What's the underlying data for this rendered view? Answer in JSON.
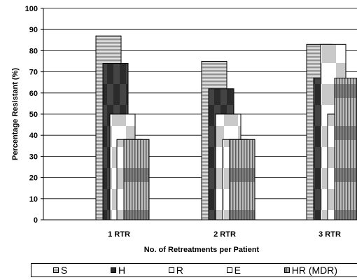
{
  "chart_data": {
    "type": "bar",
    "title": "",
    "xlabel": "No. of Retreatments per Patient",
    "ylabel": "Percentage Resistant (%)",
    "ylim": [
      0,
      100
    ],
    "yticks": [
      "0",
      "10",
      "20",
      "30",
      "40",
      "50",
      "60",
      "70",
      "80",
      "90",
      "100"
    ],
    "grid": true,
    "legend_position": "bottom",
    "categories": [
      "1 RTR",
      "2 RTR",
      "3 RTR"
    ],
    "series": [
      {
        "name": "S",
        "values": [
          87,
          75,
          83
        ],
        "pattern": "horizontal-stripes"
      },
      {
        "name": "H",
        "values": [
          74,
          62,
          67
        ],
        "pattern": "dark-checker"
      },
      {
        "name": "R",
        "values": [
          50,
          50,
          83
        ],
        "pattern": "light-checker"
      },
      {
        "name": "E",
        "values": [
          38,
          38,
          50
        ],
        "pattern": "light-checker"
      },
      {
        "name": "HR (MDR)",
        "values": [
          38,
          38,
          67
        ],
        "pattern": "dark-grid"
      }
    ]
  }
}
